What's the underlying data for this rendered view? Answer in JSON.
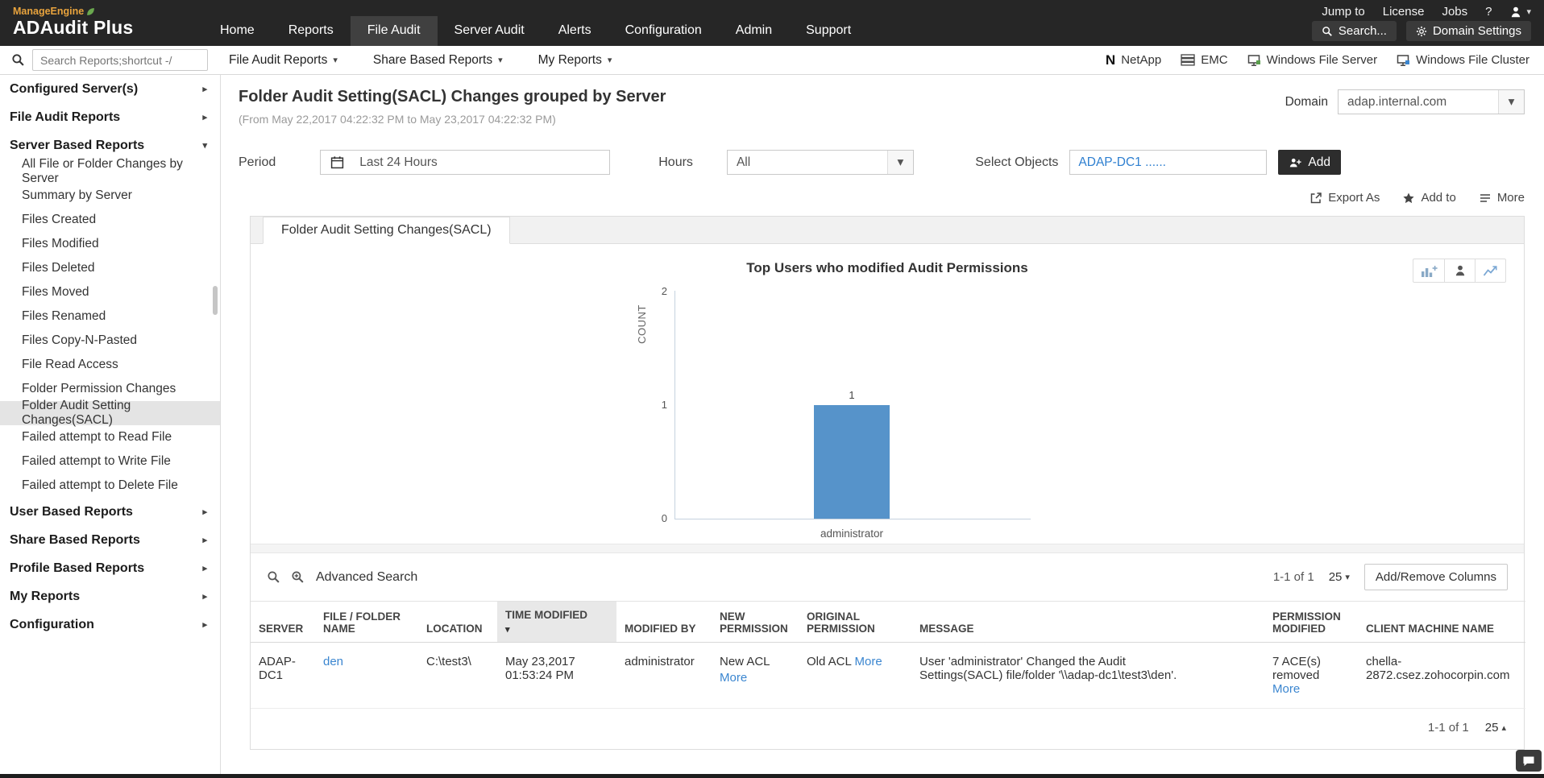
{
  "colors": {
    "header_bg": "#262626",
    "active_tab_bg": "#404040",
    "link_blue": "#3b86d0",
    "bar_fill": "#5693ca",
    "add_button_bg": "#2d2d2d",
    "brand_orange": "#e8a33d"
  },
  "header": {
    "brand_top": "ManageEngine",
    "brand_main": "ADAudit Plus",
    "top_links": [
      "Jump to",
      "License",
      "Jobs"
    ],
    "help_label": "?",
    "nav": [
      "Home",
      "Reports",
      "File Audit",
      "Server Audit",
      "Alerts",
      "Configuration",
      "Admin",
      "Support"
    ],
    "active_nav": "File Audit",
    "search_label": "Search...",
    "domain_settings_label": "Domain Settings"
  },
  "toolbar": {
    "search_placeholder": "Search Reports;shortcut -/",
    "menus": [
      "File Audit Reports",
      "Share Based Reports",
      "My Reports"
    ],
    "server_types": [
      "NetApp",
      "EMC",
      "Windows File Server",
      "Windows File Cluster"
    ]
  },
  "sidebar": {
    "top_sections": [
      "Configured Server(s)",
      "File Audit Reports"
    ],
    "expanded_section": "Server Based Reports",
    "report_items": [
      "All File or Folder Changes by Server",
      "Summary by Server",
      "Files Created",
      "Files Modified",
      "Files Deleted",
      "Files Moved",
      "Files Renamed",
      "Files Copy-N-Pasted",
      "File Read Access",
      "Folder Permission Changes",
      "Folder Audit Setting Changes(SACL)",
      "Failed attempt to Read File",
      "Failed attempt to Write File",
      "Failed attempt to Delete File"
    ],
    "active_item": "Folder Audit Setting Changes(SACL)",
    "bottom_sections": [
      "User Based Reports",
      "Share Based Reports",
      "Profile Based Reports",
      "My Reports",
      "Configuration"
    ]
  },
  "report": {
    "title": "Folder Audit Setting(SACL) Changes grouped by Server",
    "date_range": "(From May 22,2017 04:22:32 PM to May 23,2017 04:22:32 PM)",
    "domain_label": "Domain",
    "domain_value": "adap.internal.com",
    "period_label": "Period",
    "period_value": "Last 24 Hours",
    "hours_label": "Hours",
    "hours_value": "All",
    "select_objects_label": "Select Objects",
    "select_objects_value": "ADAP-DC1 ......",
    "add_button_label": "Add",
    "export_as_label": "Export As",
    "add_to_label": "Add to",
    "more_label": "More",
    "tab_label": "Folder Audit Setting Changes(SACL)"
  },
  "chart_data": {
    "type": "bar",
    "title": "Top Users who modified Audit Permissions",
    "xlabel": "",
    "ylabel": "COUNT",
    "categories": [
      "administrator"
    ],
    "values": [
      1
    ],
    "data_labels": [
      "1"
    ],
    "ylim": [
      0,
      2
    ],
    "yticks": [
      0,
      1,
      2
    ],
    "grid": false,
    "legend": false,
    "bar_color": "#5693ca"
  },
  "table": {
    "advanced_search_label": "Advanced Search",
    "pagination_top": "1-1 of 1",
    "page_size_top": "25",
    "add_remove_columns_label": "Add/Remove Columns",
    "columns": [
      "SERVER",
      "FILE / FOLDER NAME",
      "LOCATION",
      "TIME MODIFIED",
      "MODIFIED BY",
      "NEW PERMISSION",
      "ORIGINAL PERMISSION",
      "MESSAGE",
      "PERMISSION MODIFIED",
      "CLIENT MACHINE NAME"
    ],
    "sorted_column": "TIME MODIFIED",
    "sort_direction": "desc",
    "rows": [
      {
        "server": "ADAP-DC1",
        "file_folder_name": "den",
        "location": "C:\\test3\\",
        "time_modified": "May 23,2017 01:53:24 PM",
        "modified_by": "administrator",
        "new_permission": "New ACL",
        "new_permission_more": "More",
        "original_permission": "Old ACL",
        "original_permission_more": "More",
        "message": "User 'administrator' Changed the Audit Settings(SACL) file/folder '\\\\adap-dc1\\test3\\den'.",
        "permission_modified": "7 ACE(s) removed",
        "permission_modified_more": "More",
        "client_machine_name": "chella-2872.csez.zohocorpin.com"
      }
    ],
    "pagination_bottom": "1-1 of 1",
    "page_size_bottom": "25"
  }
}
